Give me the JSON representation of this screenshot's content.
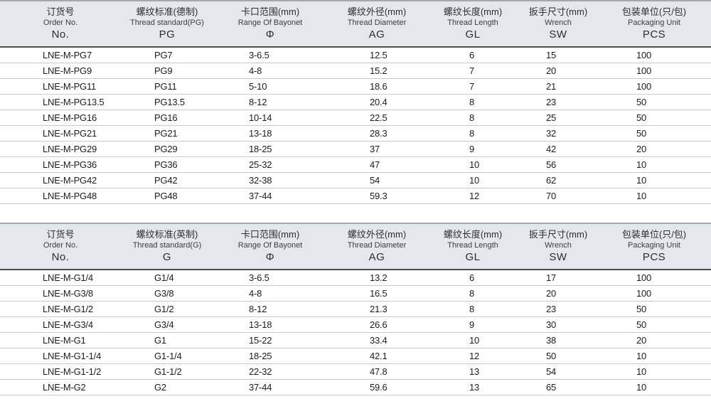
{
  "colors": {
    "header_bg": "#e4e7ed",
    "table_top_border": "#a4a8ae",
    "header_bottom_border": "#4c4c4c",
    "row_divider": "#c8c9cb",
    "header_text": "#2e2e2e",
    "cell_text": "#1d1d1d"
  },
  "tables": [
    {
      "columns": [
        {
          "zh": "订货号",
          "en": "Order No.",
          "code": "No."
        },
        {
          "zh": "螺纹标准(德制)",
          "en": "Thread standard(PG)",
          "code": "PG"
        },
        {
          "zh": "卡口范围(mm)",
          "en": "Range Of Bayonet",
          "code": "Φ"
        },
        {
          "zh": "螺纹外径(mm)",
          "en": "Thread Diameter",
          "code": "AG"
        },
        {
          "zh": "螺纹长度(mm)",
          "en": "Thread Length",
          "code": "GL"
        },
        {
          "zh": "扳手尺寸(mm)",
          "en": "Wrench",
          "code": "SW"
        },
        {
          "zh": "包装单位(只/包)",
          "en": "Packaging Unit",
          "code": "PCS"
        }
      ],
      "rows": [
        [
          "LNE-M-PG7",
          "PG7",
          "3-6.5",
          "12.5",
          "6",
          "15",
          "100"
        ],
        [
          "LNE-M-PG9",
          "PG9",
          "4-8",
          "15.2",
          "7",
          "20",
          "100"
        ],
        [
          "LNE-M-PG11",
          "PG11",
          "5-10",
          "18.6",
          "7",
          "21",
          "100"
        ],
        [
          "LNE-M-PG13.5",
          "PG13.5",
          "8-12",
          "20.4",
          "8",
          "23",
          "50"
        ],
        [
          "LNE-M-PG16",
          "PG16",
          "10-14",
          "22.5",
          "8",
          "25",
          "50"
        ],
        [
          "LNE-M-PG21",
          "PG21",
          "13-18",
          "28.3",
          "8",
          "32",
          "50"
        ],
        [
          "LNE-M-PG29",
          "PG29",
          "18-25",
          "37",
          "9",
          "42",
          "20"
        ],
        [
          "LNE-M-PG36",
          "PG36",
          "25-32",
          "47",
          "10",
          "56",
          "10"
        ],
        [
          "LNE-M-PG42",
          "PG42",
          "32-38",
          "54",
          "10",
          "62",
          "10"
        ],
        [
          "LNE-M-PG48",
          "PG48",
          "37-44",
          "59.3",
          "12",
          "70",
          "10"
        ]
      ]
    },
    {
      "columns": [
        {
          "zh": "订货号",
          "en": "Order No.",
          "code": "No."
        },
        {
          "zh": "螺纹标准(英制)",
          "en": "Thread standard(G)",
          "code": "G"
        },
        {
          "zh": "卡口范围(mm)",
          "en": "Range Of Bayonet",
          "code": "Φ"
        },
        {
          "zh": "螺纹外径(mm)",
          "en": "Thread Diameter",
          "code": "AG"
        },
        {
          "zh": "螺纹长度(mm)",
          "en": "Thread Length",
          "code": "GL"
        },
        {
          "zh": "扳手尺寸(mm)",
          "en": "Wrench",
          "code": "SW"
        },
        {
          "zh": "包装单位(只/包)",
          "en": "Packaging Unit",
          "code": "PCS"
        }
      ],
      "rows": [
        [
          "LNE-M-G1/4",
          "G1/4",
          "3-6.5",
          "13.2",
          "6",
          "17",
          "100"
        ],
        [
          "LNE-M-G3/8",
          "G3/8",
          "4-8",
          "16.5",
          "8",
          "20",
          "100"
        ],
        [
          "LNE-M-G1/2",
          "G1/2",
          "8-12",
          "21.3",
          "8",
          "23",
          "50"
        ],
        [
          "LNE-M-G3/4",
          "G3/4",
          "13-18",
          "26.6",
          "9",
          "30",
          "50"
        ],
        [
          "LNE-M-G1",
          "G1",
          "15-22",
          "33.4",
          "10",
          "38",
          "20"
        ],
        [
          "LNE-M-G1-1/4",
          "G1-1/4",
          "18-25",
          "42.1",
          "12",
          "50",
          "10"
        ],
        [
          "LNE-M-G1-1/2",
          "G1-1/2",
          "22-32",
          "47.8",
          "13",
          "54",
          "10"
        ],
        [
          "LNE-M-G2",
          "G2",
          "37-44",
          "59.6",
          "13",
          "65",
          "10"
        ]
      ]
    }
  ]
}
